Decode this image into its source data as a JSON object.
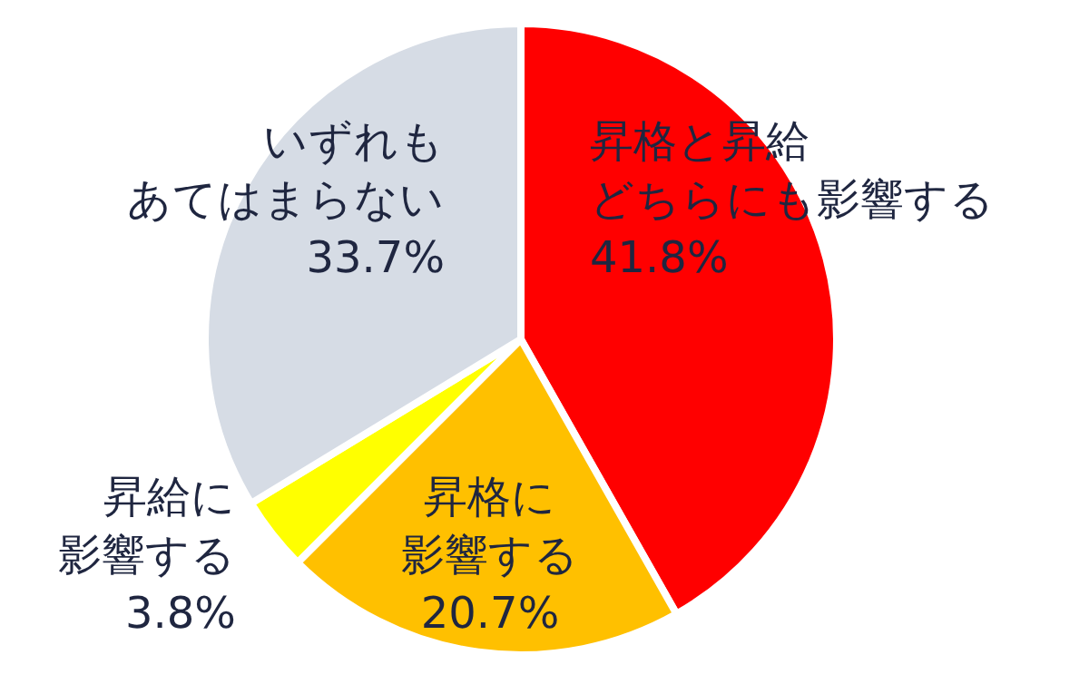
{
  "chart_data": {
    "type": "pie",
    "categories": [
      "昇格と昇給どちらにも影響する",
      "昇格に影響する",
      "昇給に影響する",
      "いずれもあてはまらない"
    ],
    "values": [
      41.8,
      20.7,
      3.8,
      33.7
    ],
    "colors": [
      "#ff0000",
      "#ffc000",
      "#ffff00",
      "#d6dce5"
    ],
    "value_labels": [
      "41.8%",
      "20.7%",
      "3.8%",
      "33.7%"
    ]
  }
}
